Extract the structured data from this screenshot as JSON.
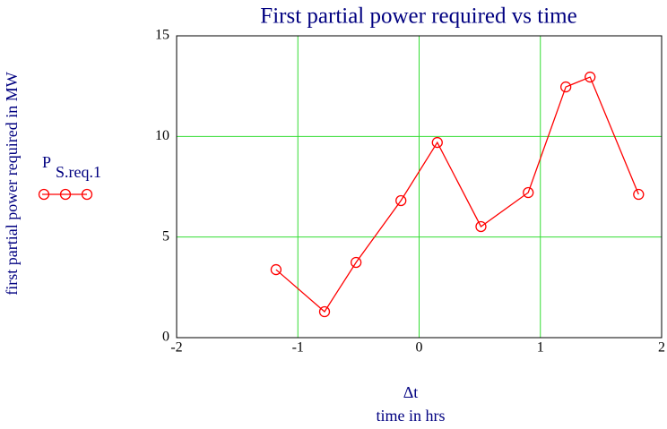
{
  "chart_data": {
    "type": "line",
    "title": "First partial power required vs time",
    "xlabel": "Δt",
    "xlabel2": "time in hrs",
    "ylabel": "first partial power required in MW",
    "x": [
      -1.18,
      -0.78,
      -0.52,
      -0.15,
      0.15,
      0.51,
      0.9,
      1.21,
      1.41,
      1.81
    ],
    "series": [
      {
        "name": "P",
        "subscript": "S.req.1",
        "color": "#ff0000",
        "values": [
          3.38,
          1.29,
          3.74,
          6.81,
          9.7,
          5.52,
          7.21,
          12.46,
          12.95,
          7.12
        ]
      }
    ],
    "xlim": [
      -2,
      2
    ],
    "xticks": [
      -2,
      -1,
      0,
      1,
      2
    ],
    "ylim": [
      0,
      15
    ],
    "yticks": [
      0,
      5,
      10,
      15
    ],
    "grid": true,
    "grid_color": "#33dd33",
    "legend": "left"
  }
}
